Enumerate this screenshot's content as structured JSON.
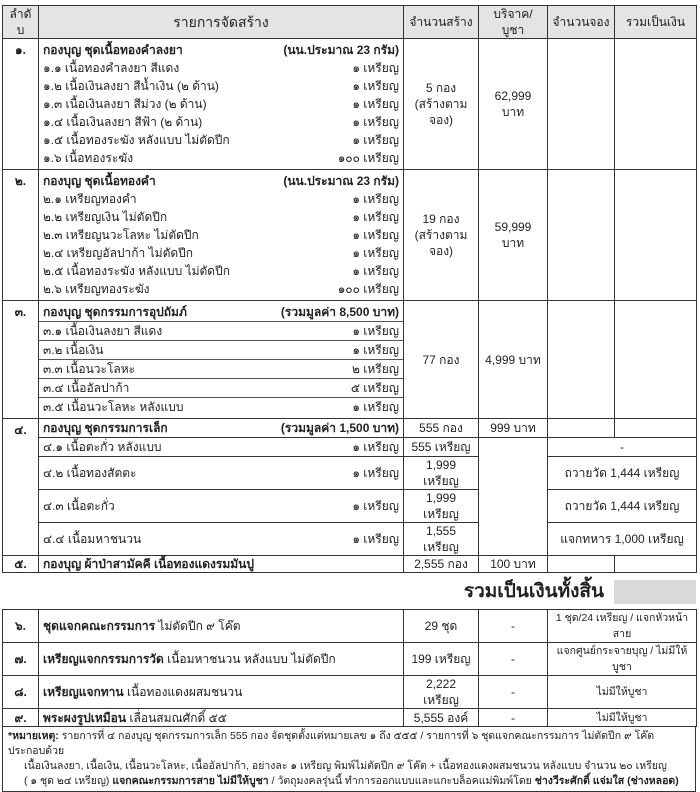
{
  "headers": {
    "no": "ลำดับ",
    "item": "รายการจัดสร้าง",
    "built": "จำนวนสร้าง",
    "price": "บริจาค/บูชา",
    "reserved": "จำนวนจอง",
    "total": "รวมเป็นเงิน"
  },
  "s1": {
    "no": "๑.",
    "title": "กองบุญ ชุดเนื้อทองคำลงยา",
    "title_note": "(นน.ประมาณ 23 กรัม)",
    "built": "5 กอง",
    "built_note": "(สร้างตามจอง)",
    "price": "62,999 บาท",
    "items": [
      {
        "label": "๑.๑ เนื้อทองคำลงยา สีแดง",
        "qty": "๑ เหรียญ"
      },
      {
        "label": "๑.๒ เนื้อเงินลงยา สีน้ำเงิน (๒ ด้าน)",
        "qty": "๑ เหรียญ"
      },
      {
        "label": "๑.๓ เนื้อเงินลงยา สีม่วง (๒ ด้าน)",
        "qty": "๑ เหรียญ"
      },
      {
        "label": "๑.๔ เนื้อเงินลงยา สีฟ้า (๒ ด้าน)",
        "qty": "๑ เหรียญ"
      },
      {
        "label": "๑.๕ เนื้อทองระฆัง หลังแบบ ไม่ตัดปีก",
        "qty": "๑ เหรียญ"
      },
      {
        "label": "๑.๖ เนื้อทองระฆัง",
        "qty": "๑๐๐ เหรียญ"
      }
    ]
  },
  "s2": {
    "no": "๒.",
    "title": "กองบุญ ชุดเนื้อทองคำ",
    "title_note": "(นน.ประมาณ 23 กรัม)",
    "built": "19 กอง",
    "built_note": "(สร้างตามจอง)",
    "price": "59,999 บาท",
    "items": [
      {
        "label": "๒.๑ เหรียญทองคำ",
        "qty": "๑ เหรียญ"
      },
      {
        "label": "๒.๒ เหรียญเงิน ไม่ตัดปีก",
        "qty": "๑ เหรียญ"
      },
      {
        "label": "๒.๓ เหรียญนวะโลหะ ไม่ตัดปีก",
        "qty": "๑ เหรียญ"
      },
      {
        "label": "๒.๔ เหรียญอัลปาก้า ไม่ตัดปีก",
        "qty": "๑ เหรียญ"
      },
      {
        "label": "๒.๕ เนื้อทองระฆัง หลังแบบ ไม่ตัดปีก",
        "qty": "๑ เหรียญ"
      },
      {
        "label": "๒.๖ เหรียญทองระฆัง",
        "qty": "๑๐๐ เหรียญ"
      }
    ]
  },
  "s3": {
    "no": "๓.",
    "title": "กองบุญ ชุดกรรมการอุปถัมภ์",
    "title_note": "(รวมมูลค่า 8,500 บาท)",
    "built": "77 กอง",
    "price": "4,999 บาท",
    "items": [
      {
        "label": "๓.๑ เนื้อเงินลงยา สีแดง",
        "qty": "๑ เหรียญ"
      },
      {
        "label": "๓.๒ เนื้อเงิน",
        "qty": "๑ เหรียญ"
      },
      {
        "label": "๓.๓ เนื้อนวะโลหะ",
        "qty": "๒ เหรียญ"
      },
      {
        "label": "๓.๔ เนื้ออัลปาก้า",
        "qty": "๕ เหรียญ"
      },
      {
        "label": "๓.๕ เนื้อนวะโลหะ หลังแบบ",
        "qty": "๑ เหรียญ"
      }
    ]
  },
  "s4": {
    "no": "๔.",
    "title": "กองบุญ ชุดกรรมการเล็ก",
    "title_note": "(รวมมูลค่า 1,500 บาท)",
    "built": "555 กอง",
    "price": "999 บาท",
    "items": [
      {
        "label": "๔.๑ เนื้อตะกั่ว หลังแบบ",
        "qty": "๑ เหรียญ",
        "built": "555 เหรียญ",
        "note": "-"
      },
      {
        "label": "๔.๒ เนื้อทองสัตตะ",
        "qty": "๑ เหรียญ",
        "built": "1,999 เหรียญ",
        "note": "ถวายวัด 1,444 เหรียญ"
      },
      {
        "label": "๔.๓ เนื้อตะกั่ว",
        "qty": "๑ เหรียญ",
        "built": "1,999 เหรียญ",
        "note": "ถวายวัด 1,444 เหรียญ"
      },
      {
        "label": "๔.๔ เนื้อมหาชนวน",
        "qty": "๑ เหรียญ",
        "built": "1,555 เหรียญ",
        "note": "แจกทหาร 1,000 เหรียญ"
      }
    ]
  },
  "s5": {
    "no": "๕.",
    "title": "กองบุญ ผ้าป่าสามัคคี เนื้อทองแดงรมมันปู",
    "built": "2,555 กอง",
    "price": "100 บาท"
  },
  "grand_total_label": "รวมเป็นเงินทั้งสิ้น",
  "extra": [
    {
      "no": "๖.",
      "bold": "ชุดแจกคณะกรรมการ",
      "rest": " ไม่ตัดปีก ๙ โค๊ต",
      "qty": "29 ชุด",
      "price": "-",
      "note": "1 ชุด/24 เหรียญ / แจกหัวหน้าสาย"
    },
    {
      "no": "๗.",
      "bold": "เหรียญแจกกรรมการวัด",
      "rest": " เนื้อมหาชนวน หลังแบบ ไม่ตัดปีก",
      "qty": "199 เหรียญ",
      "price": "-",
      "note": "แจกศูนย์กระจายบุญ / ไม่มีให้บูชา"
    },
    {
      "no": "๘.",
      "bold": "เหรียญแจกทาน",
      "rest": " เนื้อทองแดงผสมชนวน",
      "qty": "2,222 เหรียญ",
      "price": "-",
      "note": "ไม่มีให้บูชา"
    },
    {
      "no": "๙.",
      "bold": "พระผงรูปเหมือน",
      "rest": " เลื่อนสมณศักดิ์ ๕๕",
      "qty": "5,555 องค์",
      "price": "-",
      "note": "ไม่มีให้บูชา"
    }
  ],
  "note": {
    "l1_bold": "*หมายเหตุ:",
    "l1": " รายการที่ ๔ กองบุญ ชุดกรรมการเล็ก 555 กอง จัดชุดตั้งแต่หมายเลข ๑ ถึง ๕๕๕ / รายการที่ ๖ ชุดแจกคณะกรรมการ ไม่ตัดปีก ๙ โค๊ต ประกอบด้วย",
    "l2": "เนื้อเงินลงยา, เนื้อเงิน, เนื้อนวะโลหะ, เนื้ออัลปาก้า, อย่างละ ๑ เหรียญ พิมพ์ไม่ตัดปีก ๙ โค๊ต + เนื้อทองแดงผสมชนวน หลังแบบ จำนวน ๒๐ เหรียญ",
    "l3a": "( ๑ ชุด ๒๔ เหรียญ) ",
    "l3b": "แจกคณะกรรมการสาย ไม่มีให้บูชา",
    "l3c": " / วัตถุมงคลรุ่นนี้ ทำการออกแบบและแกะบล็อคแม่พิมพ์โดย ",
    "l3d": "ช่างวีระศักดิ์ แจ่มใส (ช่างหลอด)"
  }
}
